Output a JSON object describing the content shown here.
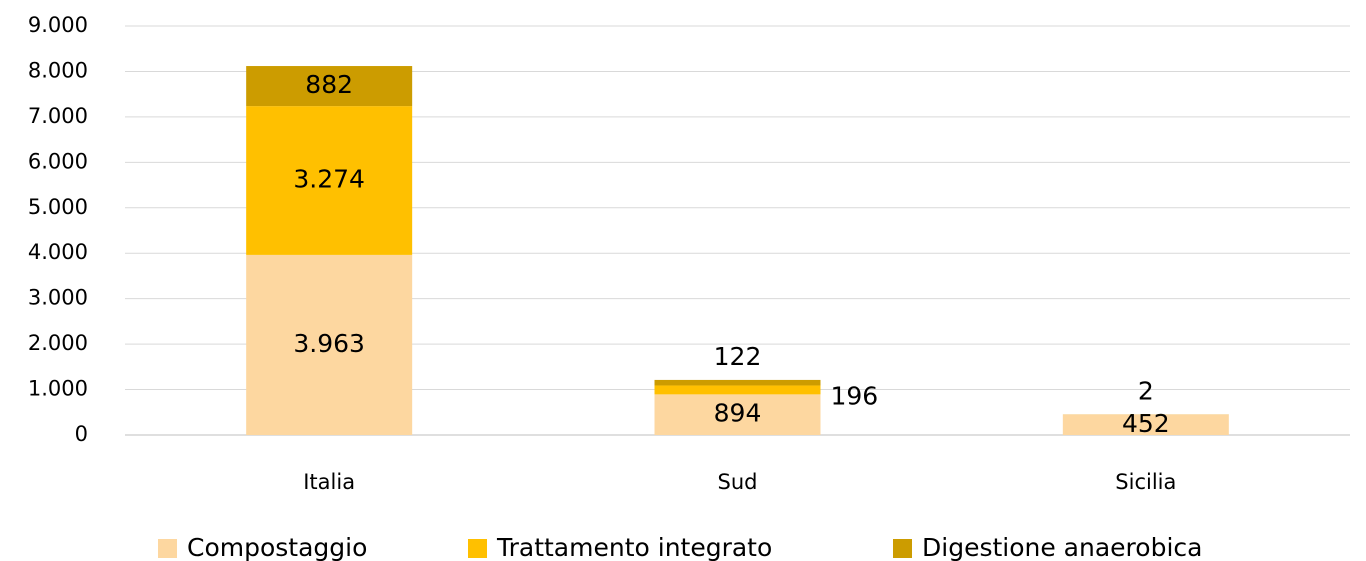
{
  "chart_data": {
    "type": "stacked_bar",
    "categories": [
      "Italia",
      "Sud",
      "Sicilia"
    ],
    "series": [
      {
        "name": "Compostaggio",
        "color": "#fdd7a0",
        "values": [
          3963,
          894,
          452
        ],
        "value_labels": [
          "3.963",
          "894",
          "452"
        ]
      },
      {
        "name": "Trattamento integrato",
        "color": "#ffc000",
        "values": [
          3274,
          196,
          null
        ],
        "value_labels": [
          "3.274",
          "196",
          null
        ]
      },
      {
        "name": "Digestione anaerobica",
        "color": "#cc9c00",
        "values": [
          882,
          122,
          2
        ],
        "value_labels": [
          "882",
          "122",
          "2"
        ]
      }
    ],
    "ylim": [
      0,
      9000
    ],
    "yticks": [
      0,
      {
        "value": 1000,
        "label": "1.000"
      },
      {
        "value": 2000,
        "label": "2.000"
      },
      {
        "value": 3000,
        "label": "3.000"
      },
      {
        "value": 4000,
        "label": "4.000"
      },
      {
        "value": 5000,
        "label": "5.000"
      },
      {
        "value": 6000,
        "label": "6.000"
      },
      {
        "value": 7000,
        "label": "7.000"
      },
      {
        "value": 8000,
        "label": "8.000"
      },
      {
        "value": 9000,
        "label": "9.000"
      }
    ],
    "grid": true,
    "legend": "bottom"
  }
}
